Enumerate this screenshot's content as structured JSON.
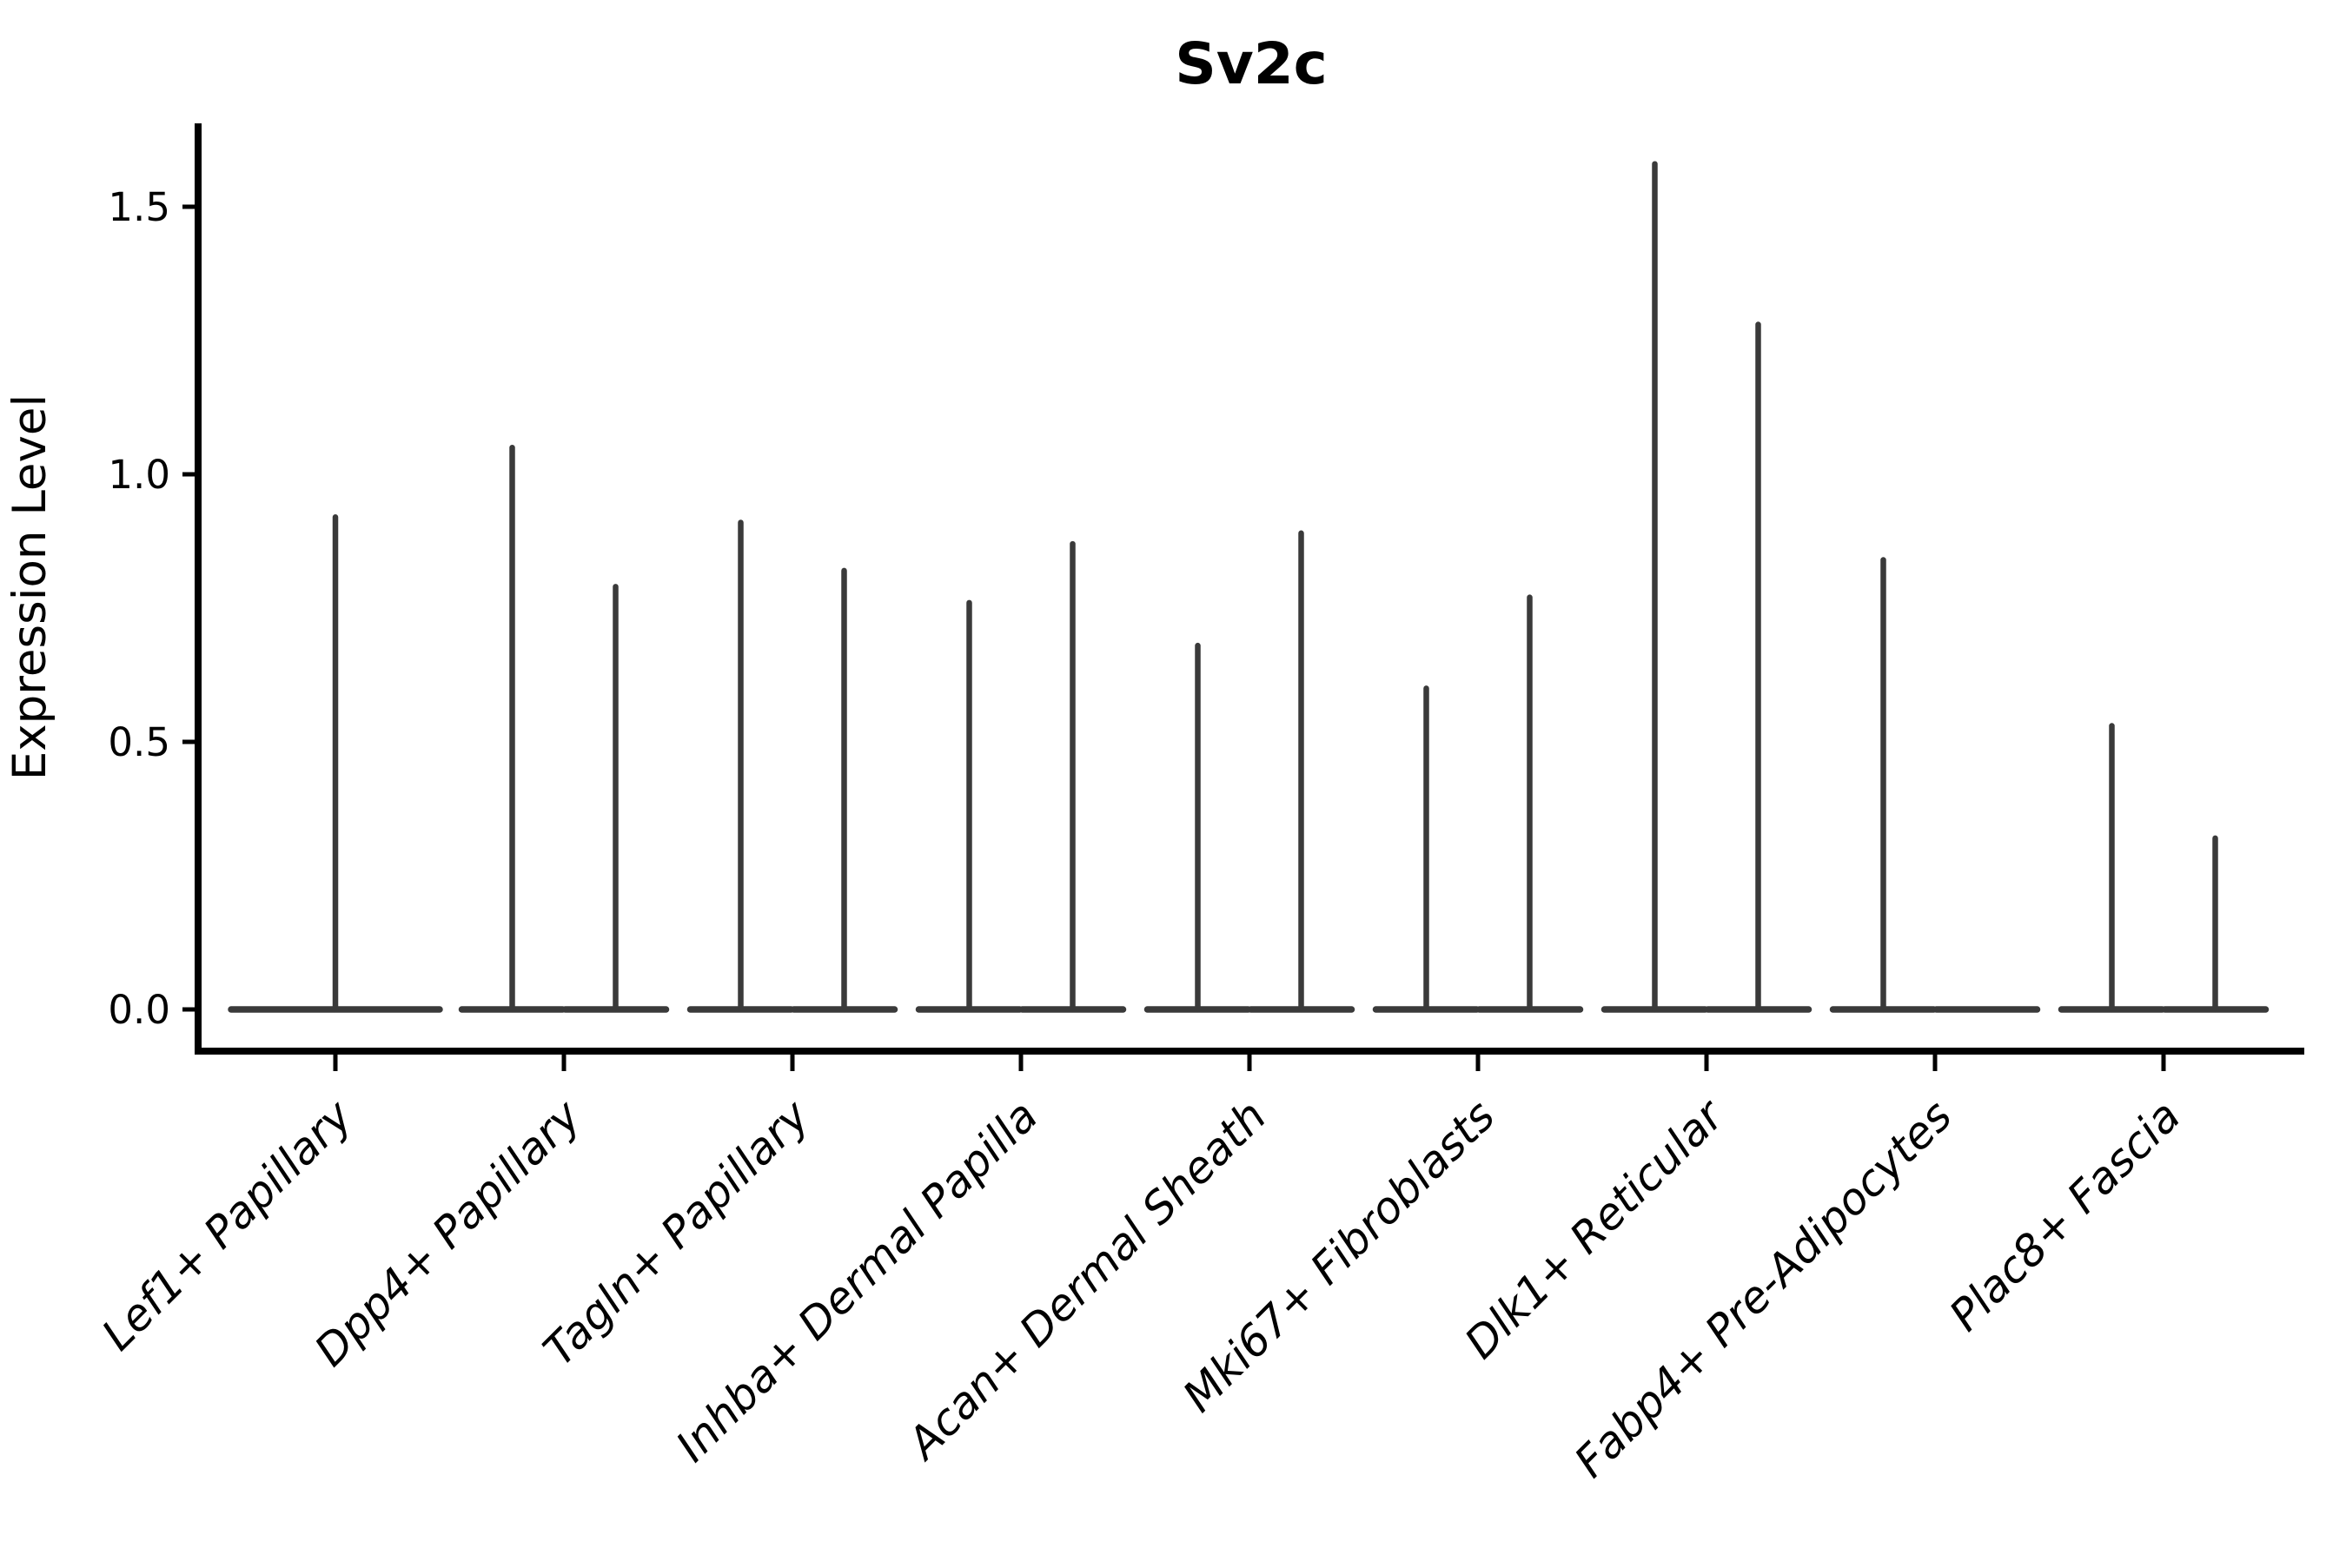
{
  "chart_data": {
    "type": "violin",
    "title": "Sv2c",
    "xlabel": "",
    "ylabel": "Expression Level",
    "yticks": [
      "0.0",
      "0.5",
      "1.0",
      "1.5"
    ],
    "ytick_values": [
      0.0,
      0.5,
      1.0,
      1.5
    ],
    "ylim": [
      -0.08,
      1.66
    ],
    "grid": false,
    "legend": "none",
    "categories": [
      "Lef1+ Papillary",
      "Dpp4+ Papillary",
      "Tagln+ Papillary",
      "Inhba+ Dermal Papilla",
      "Acan+ Dermal Sheath",
      "Mki67+ Fibroblasts",
      "Dlk1+ Reticular",
      "Fabp4+ Pre-Adipocytes",
      "Plac8+ Fascia"
    ],
    "violins": [
      {
        "category": "Lef1+ Papillary",
        "groups": [
          {
            "max": 0.92
          }
        ]
      },
      {
        "category": "Dpp4+ Papillary",
        "groups": [
          {
            "max": 1.05
          },
          {
            "max": 0.79
          }
        ]
      },
      {
        "category": "Tagln+ Papillary",
        "groups": [
          {
            "max": 0.91
          },
          {
            "max": 0.82
          }
        ]
      },
      {
        "category": "Inhba+ Dermal Papilla",
        "groups": [
          {
            "max": 0.76
          },
          {
            "max": 0.87
          }
        ]
      },
      {
        "category": "Acan+ Dermal Sheath",
        "groups": [
          {
            "max": 0.68
          },
          {
            "max": 0.89
          }
        ]
      },
      {
        "category": "Mki67+ Fibroblasts",
        "groups": [
          {
            "max": 0.6
          },
          {
            "max": 0.77
          }
        ]
      },
      {
        "category": "Dlk1+ Reticular",
        "groups": [
          {
            "max": 1.58
          },
          {
            "max": 1.28
          }
        ]
      },
      {
        "category": "Fabp4+ Pre-Adipocytes",
        "groups": [
          {
            "max": 0.84
          },
          {
            "max": 0.0
          }
        ]
      },
      {
        "category": "Plac8+ Fascia",
        "groups": [
          {
            "max": 0.53
          },
          {
            "max": 0.32
          }
        ]
      }
    ],
    "baseline_value": 0.0,
    "violin_color": "#3a3a3a",
    "axis_color": "#000000"
  }
}
